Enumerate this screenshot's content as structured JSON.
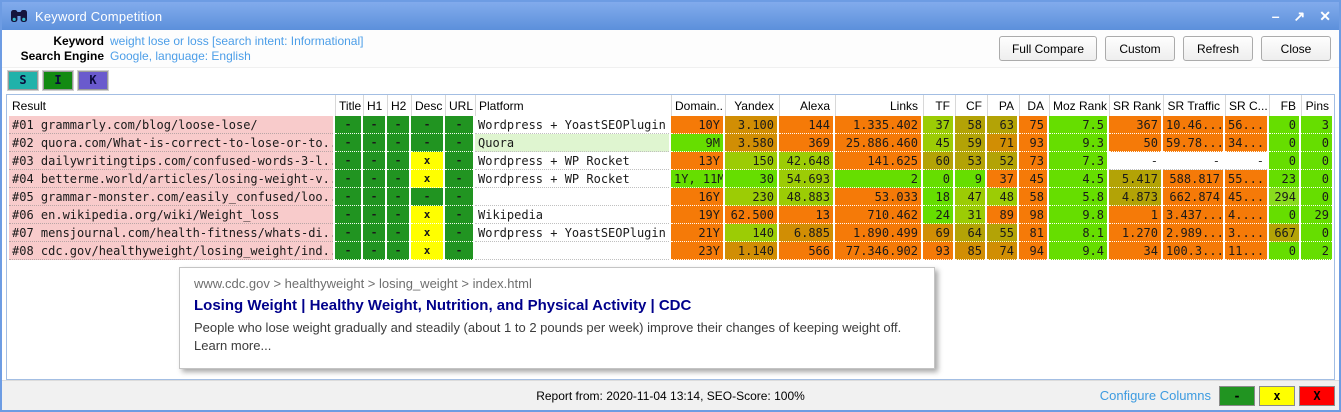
{
  "window": {
    "title": "Keyword Competition",
    "controls": {
      "minimize": "–",
      "maximize": "↗",
      "close": "✕"
    }
  },
  "toolbar": {
    "meta": [
      {
        "label": "Keyword",
        "value": "weight lose or loss [search intent: Informational]"
      },
      {
        "label": "Search Engine",
        "value": "Google, language: English"
      }
    ],
    "buttons": [
      "Full Compare",
      "Custom",
      "Refresh",
      "Close"
    ]
  },
  "filters": [
    {
      "label": "S",
      "color": "#20b2aa"
    },
    {
      "label": "I",
      "color": "#128a12"
    },
    {
      "label": "K",
      "color": "#6a5acd"
    }
  ],
  "table": {
    "columns": [
      "Result",
      "Title",
      "H1",
      "H2",
      "Desc",
      "URL",
      "Platform",
      "Domain...",
      "Yandex",
      "Alexa",
      "Links",
      "TF",
      "CF",
      "PA",
      "DA",
      "Moz Rank",
      "SR Rank",
      "SR Traffic",
      "SR C...",
      "FB",
      "Pins"
    ],
    "colors": {
      "o": "#f57a08",
      "oc": "#d18e04",
      "ol": "#b3a306",
      "yg": "#9ccc05",
      "g": "#66de00",
      "g2": "#8adc1e",
      "dg": "#219421",
      "y": "#ffff00",
      "w": "#ffffff"
    },
    "rows": [
      {
        "result": "#01 grammarly.com/blog/loose-lose/",
        "marks": [
          "-",
          "-",
          "-",
          "-",
          "-"
        ],
        "mark_colors": [
          "dg",
          "dg",
          "dg",
          "dg",
          "dg"
        ],
        "platform": "Wordpress + YoastSEOPlugin",
        "platform_bg": "#ffffff",
        "values": [
          "10Y",
          "3.100",
          "144",
          "1.335.402",
          "37",
          "58",
          "63",
          "75",
          "7.5",
          "367",
          "10.46...",
          "56...",
          "0",
          "3"
        ],
        "value_colors": [
          "o",
          "oc",
          "o",
          "o",
          "yg",
          "ol",
          "ol",
          "o",
          "g",
          "o",
          "o",
          "o",
          "g",
          "g"
        ]
      },
      {
        "result": "#02 quora.com/What-is-correct-to-lose-or-to...",
        "marks": [
          "-",
          "-",
          "-",
          "-",
          "-"
        ],
        "mark_colors": [
          "dg",
          "dg",
          "dg",
          "dg",
          "dg"
        ],
        "platform": "Quora",
        "platform_bg": "#dff5d0",
        "values": [
          "9M",
          "3.580",
          "369",
          "25.886.460",
          "45",
          "59",
          "71",
          "93",
          "9.3",
          "50",
          "59.78...",
          "34...",
          "0",
          "0"
        ],
        "value_colors": [
          "g",
          "oc",
          "o",
          "o",
          "yg",
          "ol",
          "oc",
          "o",
          "g",
          "o",
          "o",
          "o",
          "g",
          "g"
        ]
      },
      {
        "result": "#03 dailywritingtips.com/confused-words-3-l...",
        "marks": [
          "-",
          "-",
          "-",
          "x",
          "-"
        ],
        "mark_colors": [
          "dg",
          "dg",
          "dg",
          "y",
          "dg"
        ],
        "platform": "Wordpress + WP Rocket",
        "platform_bg": "#ffffff",
        "values": [
          "13Y",
          "150",
          "42.648",
          "141.625",
          "60",
          "53",
          "52",
          "73",
          "7.3",
          "-",
          "-",
          "-",
          "0",
          "0"
        ],
        "value_colors": [
          "o",
          "yg",
          "yg",
          "o",
          "ol",
          "ol",
          "ol",
          "o",
          "g",
          "w",
          "w",
          "w",
          "g",
          "g"
        ]
      },
      {
        "result": "#04 betterme.world/articles/losing-weight-v...",
        "marks": [
          "-",
          "-",
          "-",
          "x",
          "-"
        ],
        "mark_colors": [
          "dg",
          "dg",
          "dg",
          "y",
          "dg"
        ],
        "platform": "Wordpress + WP Rocket",
        "platform_bg": "#ffffff",
        "values": [
          "1Y, 11M",
          "30",
          "54.693",
          "2",
          "0",
          "9",
          "37",
          "45",
          "4.5",
          "5.417",
          "588.817",
          "55...",
          "23",
          "0"
        ],
        "value_colors": [
          "g",
          "g",
          "yg",
          "g",
          "g",
          "g",
          "o",
          "o",
          "g",
          "ol",
          "o",
          "o",
          "g",
          "g"
        ]
      },
      {
        "result": "#05 grammar-monster.com/easily_confused/loo...",
        "marks": [
          "-",
          "-",
          "-",
          "-",
          "-"
        ],
        "mark_colors": [
          "dg",
          "dg",
          "dg",
          "dg",
          "dg"
        ],
        "platform": "",
        "platform_bg": "#ffffff",
        "values": [
          "16Y",
          "230",
          "48.883",
          "53.033",
          "18",
          "47",
          "48",
          "58",
          "5.8",
          "4.873",
          "662.874",
          "45...",
          "294",
          "0"
        ],
        "value_colors": [
          "o",
          "yg",
          "yg",
          "o",
          "g",
          "yg",
          "yg",
          "o",
          "g",
          "ol",
          "o",
          "o",
          "g2",
          "g"
        ]
      },
      {
        "result": "#06 en.wikipedia.org/wiki/Weight_loss",
        "marks": [
          "-",
          "-",
          "-",
          "x",
          "-"
        ],
        "mark_colors": [
          "dg",
          "dg",
          "dg",
          "y",
          "dg"
        ],
        "platform": "Wikipedia",
        "platform_bg": "#ffffff",
        "values": [
          "19Y",
          "62.500",
          "13",
          "710.462",
          "24",
          "31",
          "89",
          "98",
          "9.8",
          "1",
          "3.437...",
          "4....",
          "0",
          "29"
        ],
        "value_colors": [
          "o",
          "o",
          "o",
          "o",
          "g",
          "yg",
          "o",
          "o",
          "g",
          "o",
          "o",
          "o",
          "g",
          "g"
        ]
      },
      {
        "result": "#07 mensjournal.com/health-fitness/whats-di...",
        "marks": [
          "-",
          "-",
          "-",
          "x",
          "-"
        ],
        "mark_colors": [
          "dg",
          "dg",
          "dg",
          "y",
          "dg"
        ],
        "platform": "Wordpress + YoastSEOPlugin",
        "platform_bg": "#ffffff",
        "values": [
          "21Y",
          "140",
          "6.885",
          "1.890.499",
          "69",
          "64",
          "55",
          "81",
          "8.1",
          "1.270",
          "2.989...",
          "3....",
          "667",
          "0"
        ],
        "value_colors": [
          "o",
          "yg",
          "oc",
          "o",
          "oc",
          "ol",
          "ol",
          "o",
          "g",
          "o",
          "o",
          "o",
          "ol",
          "g"
        ]
      },
      {
        "result": "#08 cdc.gov/healthyweight/losing_weight/ind...",
        "marks": [
          "-",
          "-",
          "-",
          "x",
          "-"
        ],
        "mark_colors": [
          "dg",
          "dg",
          "dg",
          "y",
          "dg"
        ],
        "platform": "",
        "platform_bg": "#ffffff",
        "values": [
          "23Y",
          "1.140",
          "566",
          "77.346.902",
          "93",
          "85",
          "74",
          "94",
          "9.4",
          "34",
          "100.3...",
          "11...",
          "0",
          "2"
        ],
        "value_colors": [
          "o",
          "oc",
          "o",
          "o",
          "o",
          "oc",
          "oc",
          "o",
          "g",
          "o",
          "o",
          "o",
          "g",
          "g"
        ]
      }
    ]
  },
  "preview": {
    "breadcrumb": "www.cdc.gov > healthyweight > losing_weight > index.html",
    "title": "Losing Weight | Healthy Weight, Nutrition, and Physical Activity | CDC",
    "description": "People who lose weight gradually and steadily (about 1 to 2 pounds per week) improve their changes of keeping weight off. Learn more..."
  },
  "statusbar": {
    "report": "Report from: 2020-11-04 13:14, SEO-Score: 100%",
    "configure_label": "Configure Columns",
    "legend": [
      {
        "label": "-",
        "color": "#219421"
      },
      {
        "label": "x",
        "color": "#ffff00"
      },
      {
        "label": "X",
        "color": "#ff0000"
      }
    ]
  }
}
